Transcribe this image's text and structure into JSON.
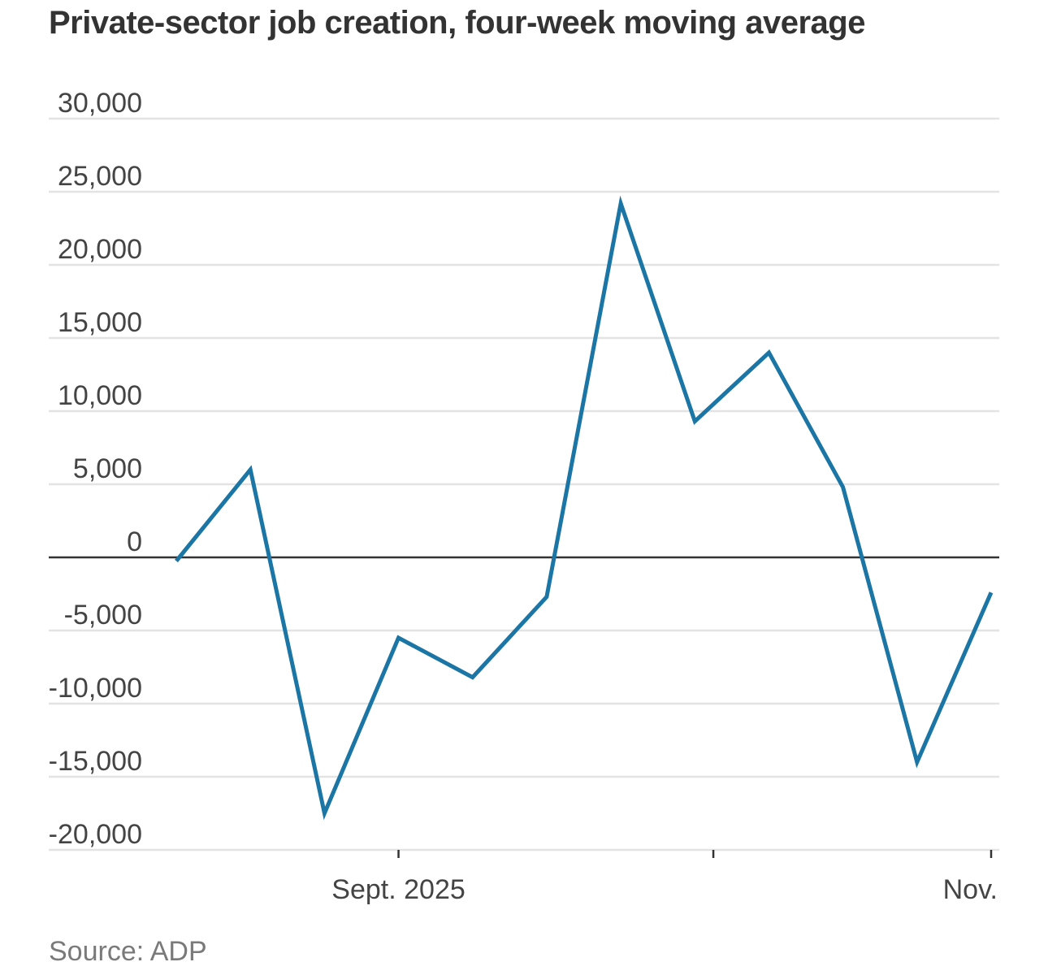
{
  "chart_data": {
    "type": "line",
    "title": "Private-sector job creation, four-week moving average",
    "source": "Source: ADP",
    "xlabel": "",
    "ylabel": "",
    "ylim": [
      -20000,
      30000
    ],
    "yticks": [
      30000,
      25000,
      20000,
      15000,
      10000,
      5000,
      0,
      -5000,
      -10000,
      -15000,
      -20000
    ],
    "ytick_labels": [
      "30,000",
      "25,000",
      "20,000",
      "15,000",
      "10,000",
      "5,000",
      "0",
      "-5,000",
      "-10,000",
      "-15,000",
      "-20,000"
    ],
    "xlim": [
      0,
      11
    ],
    "xticks": [
      {
        "x": 3,
        "label": "Sept. 2025"
      },
      {
        "x": 7.25,
        "label": ""
      },
      {
        "x": 11,
        "label": "Nov."
      }
    ],
    "grid": true,
    "colors": {
      "line": "#1b75a5",
      "grid": "#e3e3e3",
      "zero_line": "#333333",
      "axis": "#333333"
    },
    "series": [
      {
        "name": "Private-sector job creation",
        "x": [
          0,
          1,
          2,
          3,
          4,
          5,
          6,
          7,
          8,
          9,
          10,
          11
        ],
        "values": [
          -250,
          6000,
          -17500,
          -5500,
          -8200,
          -2700,
          24200,
          9300,
          14000,
          4800,
          -14000,
          -2400
        ]
      }
    ]
  }
}
